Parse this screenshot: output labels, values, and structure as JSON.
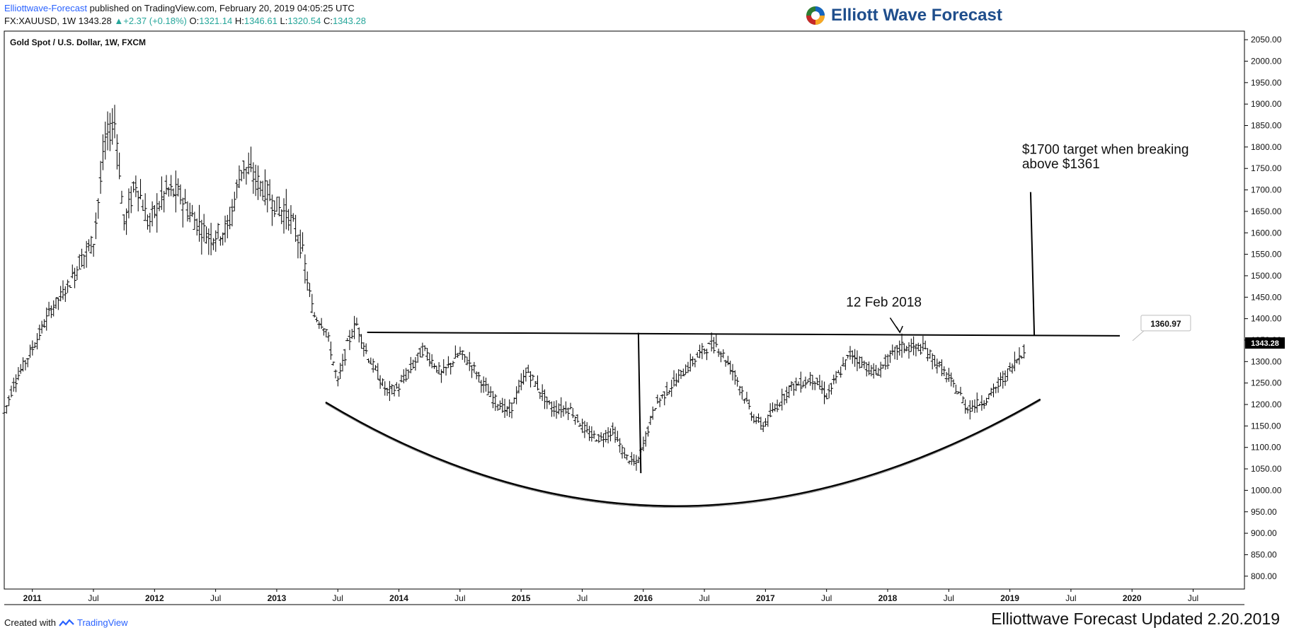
{
  "header": {
    "publisher": "Elliottwave-Forecast",
    "published_text": "published on TradingView.com, February 20, 2019 04:05:25 UTC",
    "symbol": "FX:XAUUSD, 1W",
    "price": "1343.28",
    "change": "+2.37 (+0.18%)",
    "open_label": "O:",
    "open": "1321.14",
    "high_label": "H:",
    "high": "1346.61",
    "low_label": "L:",
    "low": "1320.54",
    "close_label": "C:",
    "close": "1343.28"
  },
  "logo": {
    "text": "Elliott Wave Forecast"
  },
  "footer": {
    "created_with": "Created with",
    "brand": "TradingView",
    "updated": "Elliottwave Forecast Updated 2.20.2019"
  },
  "colors": {
    "up": "#26a69a",
    "link": "#2962ff",
    "bars": "#000000",
    "brand": "#1f4e8c"
  },
  "chart_data": {
    "type": "ohlc",
    "title": "Gold Spot / U.S. Dollar, 1W, FXCM",
    "ylim": [
      770,
      2070
    ],
    "y_ticks": [
      800,
      850,
      900,
      950,
      1000,
      1050,
      1100,
      1150,
      1200,
      1250,
      1300,
      1350,
      1400,
      1450,
      1500,
      1550,
      1600,
      1650,
      1700,
      1750,
      1800,
      1850,
      1900,
      1950,
      2000,
      2050
    ],
    "x_ticks": [
      {
        "t": 2011.0,
        "label": "2011"
      },
      {
        "t": 2011.5,
        "label": "Jul"
      },
      {
        "t": 2012.0,
        "label": "2012"
      },
      {
        "t": 2012.5,
        "label": "Jul"
      },
      {
        "t": 2013.0,
        "label": "2013"
      },
      {
        "t": 2013.5,
        "label": "Jul"
      },
      {
        "t": 2014.0,
        "label": "2014"
      },
      {
        "t": 2014.5,
        "label": "Jul"
      },
      {
        "t": 2015.0,
        "label": "2015"
      },
      {
        "t": 2015.5,
        "label": "Jul"
      },
      {
        "t": 2016.0,
        "label": "2016"
      },
      {
        "t": 2016.5,
        "label": "Jul"
      },
      {
        "t": 2017.0,
        "label": "2017"
      },
      {
        "t": 2017.5,
        "label": "Jul"
      },
      {
        "t": 2018.0,
        "label": "2018"
      },
      {
        "t": 2018.5,
        "label": "Jul"
      },
      {
        "t": 2019.0,
        "label": "2019"
      },
      {
        "t": 2019.5,
        "label": "Jul"
      },
      {
        "t": 2020.0,
        "label": "2020"
      },
      {
        "t": 2020.5,
        "label": "Jul"
      }
    ],
    "price_anchors": [
      [
        2010.77,
        1180
      ],
      [
        2010.85,
        1250
      ],
      [
        2011.0,
        1330
      ],
      [
        2011.15,
        1420
      ],
      [
        2011.3,
        1480
      ],
      [
        2011.4,
        1540
      ],
      [
        2011.5,
        1580
      ],
      [
        2011.6,
        1820
      ],
      [
        2011.68,
        1860
      ],
      [
        2011.75,
        1620
      ],
      [
        2011.85,
        1720
      ],
      [
        2011.95,
        1620
      ],
      [
        2012.1,
        1700
      ],
      [
        2012.2,
        1690
      ],
      [
        2012.3,
        1640
      ],
      [
        2012.45,
        1590
      ],
      [
        2012.6,
        1610
      ],
      [
        2012.72,
        1760
      ],
      [
        2012.9,
        1700
      ],
      [
        2013.0,
        1660
      ],
      [
        2013.1,
        1640
      ],
      [
        2013.2,
        1570
      ],
      [
        2013.3,
        1410
      ],
      [
        2013.4,
        1380
      ],
      [
        2013.5,
        1250
      ],
      [
        2013.58,
        1340
      ],
      [
        2013.65,
        1390
      ],
      [
        2013.75,
        1310
      ],
      [
        2013.9,
        1230
      ],
      [
        2014.0,
        1240
      ],
      [
        2014.2,
        1330
      ],
      [
        2014.35,
        1270
      ],
      [
        2014.5,
        1320
      ],
      [
        2014.6,
        1290
      ],
      [
        2014.75,
        1220
      ],
      [
        2014.9,
        1180
      ],
      [
        2015.05,
        1280
      ],
      [
        2015.25,
        1190
      ],
      [
        2015.4,
        1190
      ],
      [
        2015.55,
        1130
      ],
      [
        2015.65,
        1120
      ],
      [
        2015.75,
        1140
      ],
      [
        2015.85,
        1080
      ],
      [
        2015.95,
        1060
      ],
      [
        2016.1,
        1200
      ],
      [
        2016.25,
        1250
      ],
      [
        2016.5,
        1330
      ],
      [
        2016.6,
        1340
      ],
      [
        2016.75,
        1270
      ],
      [
        2016.9,
        1170
      ],
      [
        2016.98,
        1150
      ],
      [
        2017.2,
        1240
      ],
      [
        2017.4,
        1260
      ],
      [
        2017.5,
        1220
      ],
      [
        2017.7,
        1320
      ],
      [
        2017.9,
        1270
      ],
      [
        2018.1,
        1335
      ],
      [
        2018.3,
        1330
      ],
      [
        2018.45,
        1280
      ],
      [
        2018.6,
        1220
      ],
      [
        2018.65,
        1190
      ],
      [
        2018.8,
        1210
      ],
      [
        2018.95,
        1260
      ],
      [
        2019.13,
        1335
      ]
    ],
    "annotations": {
      "resistance_level": "1360.97",
      "last_price": "1343.28",
      "label_feb": "12 Feb 2018",
      "target_line1": "$1700 target when breaking",
      "target_line2": "above $1361"
    }
  }
}
